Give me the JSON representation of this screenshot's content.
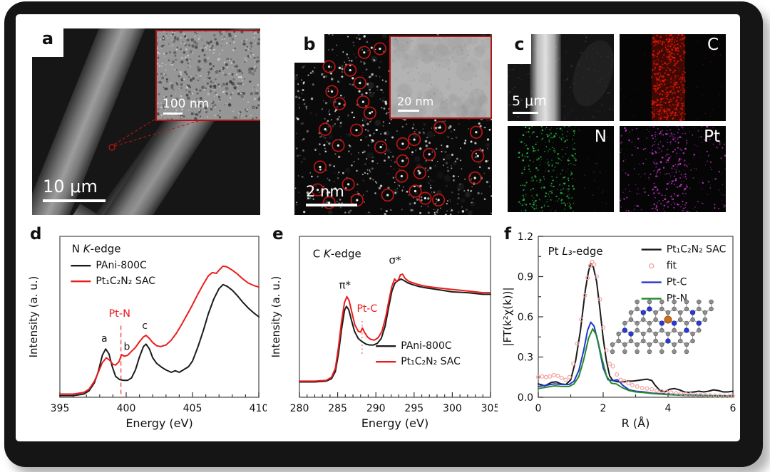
{
  "colors": {
    "accent_red": "#ec1c1c",
    "series_black": "#1b1b1b",
    "series_blue": "#2335d2",
    "series_green": "#1f8a2a",
    "fit_pink": "#f4a2a2",
    "map_c": "#e11907",
    "map_n": "#2cbf47",
    "map_pt": "#d93ae0",
    "callout_red": "#c41414"
  },
  "panels": {
    "a": {
      "letter": "a",
      "scale_label": "10 μm",
      "inset_scale_label": "100 nm"
    },
    "b": {
      "letter": "b",
      "scale_label": "2 nm",
      "inset_scale_label": "20 nm"
    },
    "c": {
      "letter": "c",
      "scale_label": "5 μm",
      "maps": [
        {
          "label": "C"
        },
        {
          "label": "N"
        },
        {
          "label": "Pt"
        }
      ]
    },
    "d": {
      "letter": "d"
    },
    "e": {
      "letter": "e"
    },
    "f": {
      "letter": "f"
    }
  },
  "chart_data": [
    {
      "panel": "d",
      "type": "line",
      "title": "N K-edge",
      "title_parts": [
        [
          "N ",
          "n"
        ],
        [
          "K",
          "i"
        ],
        [
          "-edge",
          "n"
        ]
      ],
      "xlabel": "Energy (eV)",
      "ylabel": "Intensity (a. u.)",
      "xlim": [
        395,
        410
      ],
      "ylim": [
        0,
        1
      ],
      "xticks": [
        395,
        400,
        405,
        410
      ],
      "x_minor": 1,
      "yticks": [],
      "title_pos": [
        0.06,
        0.1
      ],
      "legend": {
        "pos": [
          0.055,
          0.2
        ],
        "dy": 22,
        "order": [
          0,
          1
        ]
      },
      "series": [
        {
          "name": "PAni-800C",
          "color": "#1b1b1b",
          "type": "line",
          "x": [
            395,
            396,
            396.8,
            397.2,
            397.6,
            397.9,
            398.2,
            398.45,
            398.7,
            398.95,
            399.2,
            399.5,
            399.8,
            400.1,
            400.4,
            400.7,
            401.0,
            401.3,
            401.5,
            401.75,
            402.0,
            402.3,
            402.7,
            403.0,
            403.4,
            403.7,
            404.0,
            404.3,
            404.7,
            405.0,
            405.4,
            405.8,
            406.2,
            406.6,
            407.0,
            407.3,
            407.6,
            408.0,
            408.4,
            408.8,
            409.2,
            409.6,
            410
          ],
          "y": [
            0.01,
            0.01,
            0.02,
            0.04,
            0.09,
            0.16,
            0.26,
            0.3,
            0.27,
            0.19,
            0.13,
            0.11,
            0.105,
            0.105,
            0.12,
            0.17,
            0.25,
            0.315,
            0.33,
            0.3,
            0.245,
            0.21,
            0.185,
            0.17,
            0.155,
            0.165,
            0.155,
            0.17,
            0.19,
            0.225,
            0.31,
            0.41,
            0.52,
            0.61,
            0.675,
            0.7,
            0.69,
            0.665,
            0.63,
            0.59,
            0.555,
            0.525,
            0.5
          ]
        },
        {
          "name": "Pt₁C₂N₂ SAC",
          "color": "#ec1c1c",
          "type": "line",
          "x": [
            395,
            396,
            396.8,
            397.2,
            397.6,
            397.9,
            398.2,
            398.5,
            398.75,
            399.0,
            399.2,
            399.45,
            399.65,
            399.85,
            400.1,
            400.4,
            400.7,
            401.0,
            401.3,
            401.5,
            401.75,
            402.0,
            402.3,
            402.6,
            403.0,
            403.4,
            403.8,
            404.2,
            404.6,
            405.0,
            405.4,
            405.8,
            406.2,
            406.5,
            406.8,
            407.0,
            407.3,
            407.6,
            408.0,
            408.4,
            408.8,
            409.2,
            409.6,
            410
          ],
          "y": [
            0.02,
            0.02,
            0.03,
            0.05,
            0.1,
            0.155,
            0.215,
            0.245,
            0.23,
            0.205,
            0.2,
            0.22,
            0.265,
            0.255,
            0.26,
            0.285,
            0.31,
            0.345,
            0.375,
            0.385,
            0.365,
            0.34,
            0.32,
            0.315,
            0.325,
            0.355,
            0.4,
            0.455,
            0.515,
            0.575,
            0.64,
            0.7,
            0.755,
            0.775,
            0.77,
            0.79,
            0.815,
            0.81,
            0.79,
            0.765,
            0.735,
            0.71,
            0.695,
            0.685
          ]
        }
      ],
      "annotations": [
        {
          "type": "vline",
          "x": 399.6,
          "y0": 0.02,
          "y1": 0.45,
          "dash": "6 4",
          "color": "#f26060",
          "w": 1.6
        },
        {
          "type": "text",
          "x": 398.35,
          "y": 0.345,
          "text": "a",
          "color": "#1b1b1b",
          "size": 14
        },
        {
          "type": "text",
          "x": 400.05,
          "y": 0.295,
          "text": "b",
          "color": "#1b1b1b",
          "size": 14
        },
        {
          "type": "text",
          "x": 401.4,
          "y": 0.425,
          "text": "c",
          "color": "#1b1b1b",
          "size": 14
        },
        {
          "type": "text",
          "x": 399.5,
          "y": 0.5,
          "text": "Pt-N",
          "color": "#ec1c1c",
          "size": 14.5
        }
      ]
    },
    {
      "panel": "e",
      "type": "line",
      "title": "C K-edge",
      "title_parts": [
        [
          "C ",
          "n"
        ],
        [
          "K",
          "i"
        ],
        [
          "-edge",
          "n"
        ]
      ],
      "xlabel": "Energy (eV)",
      "ylabel": "Intensity (a. u.)",
      "xlim": [
        280,
        305
      ],
      "ylim": [
        0,
        1
      ],
      "xticks": [
        280,
        285,
        290,
        295,
        300,
        305
      ],
      "x_minor": 1,
      "yticks": [],
      "title_pos": [
        0.07,
        0.13
      ],
      "legend": {
        "pos": [
          0.4,
          0.7
        ],
        "dy": 22,
        "order": [
          0,
          1
        ]
      },
      "series": [
        {
          "name": "PAni-800C",
          "color": "#1b1b1b",
          "type": "line",
          "x": [
            280,
            282,
            283.5,
            284.2,
            284.7,
            285.1,
            285.5,
            285.9,
            286.15,
            286.45,
            286.8,
            287.2,
            287.7,
            288.2,
            288.7,
            289.2,
            289.7,
            290.2,
            290.7,
            291.2,
            291.7,
            292.1,
            292.5,
            292.9,
            293.3,
            293.7,
            294.2,
            294.8,
            295.5,
            296.5,
            298,
            300,
            302,
            304,
            305
          ],
          "y": [
            0.095,
            0.095,
            0.1,
            0.115,
            0.16,
            0.27,
            0.42,
            0.54,
            0.565,
            0.545,
            0.48,
            0.41,
            0.365,
            0.345,
            0.33,
            0.325,
            0.325,
            0.335,
            0.365,
            0.44,
            0.565,
            0.66,
            0.71,
            0.725,
            0.735,
            0.725,
            0.71,
            0.7,
            0.69,
            0.68,
            0.67,
            0.655,
            0.65,
            0.64,
            0.64
          ]
        },
        {
          "name": "Pt₁C₂N₂ SAC",
          "color": "#ec1c1c",
          "type": "line",
          "x": [
            280,
            282,
            283.5,
            284.2,
            284.7,
            285.1,
            285.5,
            285.9,
            286.2,
            286.5,
            286.85,
            287.25,
            287.7,
            288.0,
            288.25,
            288.5,
            288.9,
            289.3,
            289.8,
            290.3,
            290.8,
            291.3,
            291.7,
            292.1,
            292.45,
            292.7,
            292.95,
            293.2,
            293.5,
            293.8,
            294.3,
            294.9,
            295.6,
            296.5,
            298,
            300,
            302,
            304,
            305
          ],
          "y": [
            0.1,
            0.1,
            0.105,
            0.125,
            0.18,
            0.31,
            0.47,
            0.59,
            0.625,
            0.6,
            0.53,
            0.45,
            0.41,
            0.405,
            0.43,
            0.405,
            0.375,
            0.36,
            0.355,
            0.37,
            0.41,
            0.5,
            0.6,
            0.69,
            0.735,
            0.72,
            0.73,
            0.76,
            0.765,
            0.74,
            0.72,
            0.71,
            0.7,
            0.69,
            0.68,
            0.67,
            0.66,
            0.65,
            0.65
          ]
        }
      ],
      "annotations": [
        {
          "type": "vline",
          "x": 288.2,
          "y0": 0.27,
          "y1": 0.49,
          "dash": "2 3.5",
          "color": "#f26060",
          "w": 1.3
        },
        {
          "type": "text",
          "x": 285.95,
          "y": 0.675,
          "text": "π*",
          "color": "#1b1b1b",
          "size": 15
        },
        {
          "type": "text",
          "x": 292.5,
          "y": 0.83,
          "text": "σ*",
          "color": "#1b1b1b",
          "size": 15
        },
        {
          "type": "text",
          "x": 288.85,
          "y": 0.53,
          "text": "Pt-C",
          "color": "#ec1c1c",
          "size": 14
        }
      ]
    },
    {
      "panel": "f",
      "type": "line",
      "title": "Pt L₃-edge",
      "title_parts": [
        [
          "Pt ",
          "n"
        ],
        [
          "L",
          "i"
        ],
        [
          "₃",
          "n"
        ],
        [
          "-edge",
          "n"
        ]
      ],
      "xlabel": "R (Å)",
      "ylabel": "|FT(k²χ(k))|",
      "xlim": [
        0,
        6
      ],
      "ylim": [
        0,
        1.2
      ],
      "xticks": [
        0,
        2,
        4,
        6
      ],
      "x_minor": 1,
      "yticks": [
        0,
        0.3,
        0.6,
        0.9,
        1.2
      ],
      "y_minor": 0.15,
      "ydec": 1,
      "title_pos": [
        0.05,
        0.115
      ],
      "legend": {
        "pos": [
          0.53,
          0.1
        ],
        "dy": 23,
        "order": [
          0,
          3,
          1,
          2
        ]
      },
      "series": [
        {
          "name": "Pt₁C₂N₂ SAC",
          "color": "#1b1b1b",
          "type": "line",
          "x": [
            0,
            0.2,
            0.4,
            0.55,
            0.7,
            0.85,
            1.0,
            1.15,
            1.3,
            1.45,
            1.55,
            1.62,
            1.7,
            1.8,
            1.9,
            2.0,
            2.1,
            2.2,
            2.3,
            2.45,
            2.6,
            2.75,
            2.9,
            3.05,
            3.2,
            3.35,
            3.5,
            3.6,
            3.75,
            3.9,
            4.05,
            4.2,
            4.35,
            4.5,
            4.65,
            4.8,
            4.95,
            5.1,
            5.25,
            5.4,
            5.55,
            5.7,
            5.85,
            6.0
          ],
          "y": [
            0.1,
            0.085,
            0.11,
            0.115,
            0.1,
            0.095,
            0.13,
            0.27,
            0.5,
            0.8,
            0.94,
            1.0,
            0.97,
            0.86,
            0.66,
            0.44,
            0.27,
            0.16,
            0.125,
            0.115,
            0.115,
            0.12,
            0.12,
            0.125,
            0.13,
            0.135,
            0.125,
            0.09,
            0.05,
            0.04,
            0.06,
            0.065,
            0.055,
            0.04,
            0.035,
            0.04,
            0.045,
            0.04,
            0.045,
            0.055,
            0.05,
            0.04,
            0.04,
            0.045
          ]
        },
        {
          "name": "Pt-C",
          "color": "#2335d2",
          "type": "line",
          "x": [
            0,
            0.25,
            0.5,
            0.75,
            0.95,
            1.1,
            1.25,
            1.4,
            1.52,
            1.62,
            1.72,
            1.85,
            2.0,
            2.15,
            2.3,
            2.45,
            2.6,
            2.8,
            3.0,
            3.25,
            3.5,
            3.75,
            4.0,
            4.3,
            4.6,
            5.0,
            5.4,
            5.8,
            6.0
          ],
          "y": [
            0.08,
            0.09,
            0.1,
            0.095,
            0.095,
            0.12,
            0.2,
            0.35,
            0.5,
            0.56,
            0.53,
            0.4,
            0.22,
            0.13,
            0.125,
            0.13,
            0.09,
            0.055,
            0.045,
            0.04,
            0.03,
            0.027,
            0.025,
            0.02,
            0.018,
            0.015,
            0.012,
            0.01,
            0.01
          ]
        },
        {
          "name": "Pt-N",
          "color": "#1f8a2a",
          "type": "line",
          "x": [
            0,
            0.25,
            0.5,
            0.75,
            0.95,
            1.1,
            1.25,
            1.4,
            1.55,
            1.68,
            1.8,
            1.95,
            2.1,
            2.25,
            2.4,
            2.6,
            2.8,
            3.0,
            3.25,
            3.5,
            3.75,
            4.0,
            4.3,
            4.6,
            5.0,
            5.4,
            5.8,
            6.0
          ],
          "y": [
            0.065,
            0.075,
            0.085,
            0.08,
            0.08,
            0.1,
            0.155,
            0.28,
            0.44,
            0.51,
            0.46,
            0.3,
            0.16,
            0.105,
            0.1,
            0.07,
            0.05,
            0.04,
            0.035,
            0.028,
            0.024,
            0.02,
            0.016,
            0.013,
            0.01,
            0.009,
            0.008,
            0.008
          ]
        },
        {
          "name": "fit",
          "color": "#f4a2a2",
          "type": "scatter",
          "x": [
            0,
            0.12,
            0.24,
            0.36,
            0.48,
            0.6,
            0.72,
            0.84,
            0.96,
            1.08,
            1.2,
            1.32,
            1.44,
            1.52,
            1.6,
            1.66,
            1.72,
            1.8,
            1.9,
            2.0,
            2.1,
            2.2,
            2.3,
            2.42,
            2.54,
            2.66,
            2.78,
            2.9,
            3.05,
            3.2,
            3.35,
            3.5,
            3.65,
            3.8,
            3.95,
            4.1,
            4.25,
            4.4,
            4.55,
            4.7,
            4.85,
            5.0,
            5.15,
            5.3,
            5.45,
            5.6,
            5.75,
            5.9,
            6.0
          ],
          "y": [
            0.15,
            0.155,
            0.15,
            0.155,
            0.165,
            0.16,
            0.145,
            0.13,
            0.15,
            0.25,
            0.4,
            0.58,
            0.76,
            0.89,
            0.98,
            1.01,
            0.99,
            0.9,
            0.73,
            0.52,
            0.35,
            0.25,
            0.23,
            0.17,
            0.13,
            0.12,
            0.105,
            0.09,
            0.08,
            0.07,
            0.065,
            0.06,
            0.05,
            0.045,
            0.04,
            0.035,
            0.03,
            0.028,
            0.025,
            0.022,
            0.02,
            0.018,
            0.016,
            0.014,
            0.012,
            0.012,
            0.01,
            0.01,
            0.01
          ]
        }
      ],
      "annotations": []
    }
  ]
}
